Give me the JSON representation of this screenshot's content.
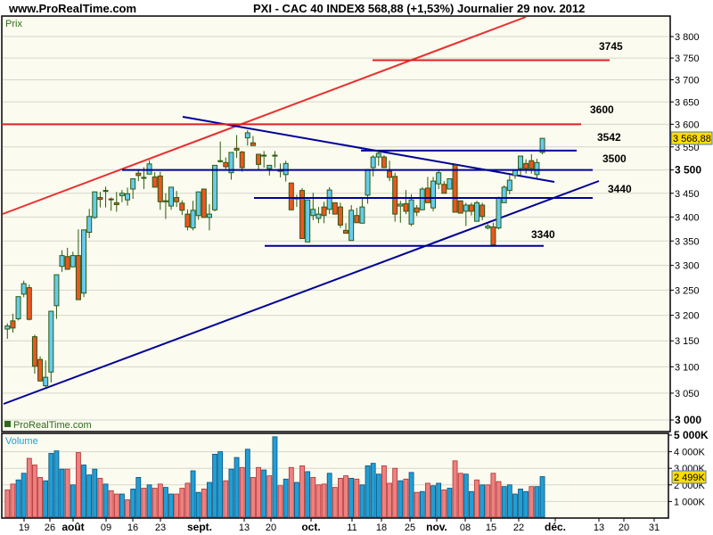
{
  "header": {
    "site": "www.ProRealTime.com",
    "instrument": "PXI - CAC 40 INDEX",
    "last_price": "3 568,88 (+1,53%)",
    "period": "Journalier",
    "date": "29 nov. 2012"
  },
  "price_panel": {
    "title": "Prix",
    "watermark": "ProRealTime.com",
    "last_price_badge": "3 568,88",
    "badge_color": "#ffdd00"
  },
  "volume_panel": {
    "title": "Volume",
    "last_volume_badge": "2 499K"
  },
  "levels": [
    {
      "label": "3745",
      "color": "#e02020"
    },
    {
      "label": "3600",
      "color": "#e02020"
    },
    {
      "label": "3542",
      "color": "#000099"
    },
    {
      "label": "3500",
      "color": "#000099"
    },
    {
      "label": "3440",
      "color": "#000099"
    },
    {
      "label": "3340",
      "color": "#000099"
    }
  ],
  "colors": {
    "up": "#66ccee",
    "down": "#ee5522",
    "wick": "#2b5a10",
    "vol_up": "#1f9fd6",
    "vol_down": "#ee8080",
    "background": "#fbfbef"
  },
  "chart_data": [
    {
      "type": "candlestick",
      "y_scale": "log",
      "ylim": [
        3000,
        3800
      ],
      "grid": true,
      "y_ticks": [
        "3 000",
        "3 050",
        "3 100",
        "3 150",
        "3 200",
        "3 250",
        "3 300",
        "3 350",
        "3 400",
        "3 450",
        "3 500",
        "3 550",
        "3 600",
        "3 650",
        "3 700",
        "3 750",
        "3 800"
      ],
      "x_ticks": [
        "19",
        "26",
        "août",
        "09",
        "16",
        "23",
        "sept.",
        "13",
        "20",
        "oct.",
        "11",
        "18",
        "25",
        "nov.",
        "08",
        "15",
        "22",
        "déc.",
        "13",
        "20",
        "31"
      ],
      "ohlc": [
        [
          3173,
          3184,
          3154,
          3179
        ],
        [
          3189,
          3203,
          3166,
          3175
        ],
        [
          3193,
          3237,
          3190,
          3237
        ],
        [
          3242,
          3269,
          3236,
          3263
        ],
        [
          3255,
          3261,
          3190,
          3192
        ],
        [
          3158,
          3162,
          3087,
          3101
        ],
        [
          3114,
          3120,
          3073,
          3073
        ],
        [
          3064,
          3112,
          3061,
          3080
        ],
        [
          3090,
          3208,
          3070,
          3208
        ],
        [
          3219,
          3281,
          3193,
          3281
        ],
        [
          3298,
          3331,
          3287,
          3320
        ],
        [
          3318,
          3336,
          3292,
          3292
        ],
        [
          3297,
          3328,
          3297,
          3320
        ],
        [
          3320,
          3374,
          3231,
          3231
        ],
        [
          3244,
          3373,
          3236,
          3373
        ],
        [
          3368,
          3417,
          3356,
          3401
        ],
        [
          3399,
          3453,
          3396,
          3453
        ],
        [
          3441,
          3453,
          3420,
          3437
        ],
        [
          3456,
          3464,
          3420,
          3454
        ],
        [
          3438,
          3441,
          3413,
          3437
        ],
        [
          3430,
          3453,
          3411,
          3426
        ],
        [
          3445,
          3457,
          3431,
          3450
        ],
        [
          3436,
          3462,
          3424,
          3449
        ],
        [
          3459,
          3481,
          3438,
          3481
        ],
        [
          3493,
          3502,
          3476,
          3488
        ],
        [
          3484,
          3506,
          3459,
          3482
        ],
        [
          3491,
          3521,
          3491,
          3513
        ],
        [
          3485,
          3495,
          3463,
          3463
        ],
        [
          3487,
          3496,
          3415,
          3432
        ],
        [
          3434,
          3450,
          3396,
          3432
        ],
        [
          3423,
          3463,
          3415,
          3463
        ],
        [
          3441,
          3455,
          3421,
          3432
        ],
        [
          3429,
          3435,
          3404,
          3414
        ],
        [
          3406,
          3416,
          3372,
          3379
        ],
        [
          3377,
          3434,
          3372,
          3414
        ],
        [
          3403,
          3453,
          3394,
          3453
        ],
        [
          3459,
          3459,
          3399,
          3399
        ],
        [
          3399,
          3427,
          3372,
          3406
        ],
        [
          3415,
          3510,
          3412,
          3510
        ],
        [
          3520,
          3562,
          3516,
          3518
        ],
        [
          3516,
          3527,
          3502,
          3507
        ],
        [
          3494,
          3538,
          3479,
          3538
        ],
        [
          3547,
          3576,
          3526,
          3543
        ],
        [
          3539,
          3541,
          3496,
          3505
        ],
        [
          3570,
          3587,
          3553,
          3581
        ],
        [
          3559,
          3574,
          3553,
          3553
        ],
        [
          3534,
          3534,
          3501,
          3512
        ],
        [
          3532,
          3541,
          3505,
          3530
        ],
        [
          3503,
          3510,
          3488,
          3510
        ],
        [
          3530,
          3541,
          3505,
          3532
        ],
        [
          3501,
          3514,
          3484,
          3497
        ],
        [
          3490,
          3520,
          3475,
          3514
        ],
        [
          3472,
          3472,
          3415,
          3415
        ],
        [
          3440,
          3447,
          3421,
          3438
        ],
        [
          3456,
          3461,
          3355,
          3355
        ],
        [
          3348,
          3436,
          3348,
          3436
        ],
        [
          3403,
          3451,
          3393,
          3416
        ],
        [
          3397,
          3421,
          3387,
          3406
        ],
        [
          3421,
          3432,
          3387,
          3403
        ],
        [
          3416,
          3463,
          3406,
          3457
        ],
        [
          3430,
          3430,
          3406,
          3406
        ],
        [
          3421,
          3430,
          3377,
          3383
        ],
        [
          3372,
          3387,
          3366,
          3366
        ],
        [
          3351,
          3425,
          3351,
          3414
        ],
        [
          3403,
          3419,
          3388,
          3388
        ],
        [
          3387,
          3440,
          3387,
          3421
        ],
        [
          3446,
          3501,
          3428,
          3501
        ],
        [
          3505,
          3532,
          3486,
          3528
        ],
        [
          3528,
          3543,
          3509,
          3536
        ],
        [
          3528,
          3532,
          3505,
          3505
        ],
        [
          3497,
          3520,
          3476,
          3484
        ],
        [
          3486,
          3494,
          3390,
          3406
        ],
        [
          3423,
          3434,
          3388,
          3427
        ],
        [
          3428,
          3457,
          3406,
          3412
        ],
        [
          3385,
          3448,
          3381,
          3436
        ],
        [
          3419,
          3425,
          3402,
          3410
        ],
        [
          3415,
          3463,
          3415,
          3459
        ],
        [
          3461,
          3485,
          3430,
          3430
        ],
        [
          3419,
          3485,
          3412,
          3476
        ],
        [
          3470,
          3501,
          3459,
          3494
        ],
        [
          3469,
          3476,
          3450,
          3450
        ],
        [
          3459,
          3481,
          3459,
          3481
        ],
        [
          3510,
          3514,
          3410,
          3410
        ],
        [
          3434,
          3434,
          3408,
          3408
        ],
        [
          3412,
          3430,
          3381,
          3425
        ],
        [
          3425,
          3430,
          3403,
          3412
        ],
        [
          3391,
          3434,
          3391,
          3430
        ],
        [
          3425,
          3430,
          3393,
          3401
        ],
        [
          3377,
          3388,
          3374,
          3381
        ],
        [
          3379,
          3388,
          3342,
          3342
        ],
        [
          3377,
          3443,
          3374,
          3440
        ],
        [
          3430,
          3467,
          3430,
          3463
        ],
        [
          3456,
          3489,
          3448,
          3478
        ],
        [
          3488,
          3499,
          3481,
          3499
        ],
        [
          3503,
          3530,
          3488,
          3530
        ],
        [
          3514,
          3523,
          3492,
          3503
        ],
        [
          3520,
          3534,
          3492,
          3503
        ],
        [
          3490,
          3524,
          3482,
          3516
        ],
        [
          3538,
          3569,
          3534,
          3568.88
        ]
      ]
    },
    {
      "type": "bar",
      "ylim": [
        0,
        5000
      ],
      "unit": "K",
      "y_ticks": [
        "1 000K",
        "2 000K",
        "3 000K",
        "4 000K",
        "5 000K"
      ],
      "values": [
        1700,
        2050,
        2300,
        2700,
        3600,
        3200,
        2450,
        2250,
        3900,
        4050,
        2950,
        2950,
        2000,
        3950,
        3200,
        2600,
        2950,
        2400,
        2050,
        1650,
        1450,
        1450,
        1100,
        1750,
        2450,
        1800,
        2000,
        1800,
        2050,
        1850,
        1450,
        1450,
        1800,
        2100,
        2850,
        1550,
        1750,
        2150,
        3850,
        4000,
        2250,
        2950,
        3650,
        3050,
        4150,
        2450,
        3050,
        2900,
        2550,
        4900,
        1950,
        2350,
        3050,
        2150,
        3150,
        2800,
        2450,
        2000,
        2050,
        2700,
        1850,
        2400,
        2550,
        2400,
        2350,
        2000,
        3150,
        3300,
        2650,
        3150,
        2100,
        3000,
        2250,
        2350,
        2750,
        1550,
        1600,
        2100,
        1950,
        2100,
        1700,
        1800,
        3450,
        2700,
        2650,
        1600,
        2300,
        2000,
        2000,
        2700,
        2200,
        1900,
        2000,
        1450,
        1750,
        1600,
        1900,
        1900,
        2499
      ],
      "directions": "rrbbrrrbbbbrbrbbbrbrrbrbbrbrrbbrrrbbrbbbrbbrbrrbrbrbrbrbrrrbrrrbrbbbbrrrbrbrbrbbrbrrbbrbrrrbbbbbrbbb"
    }
  ]
}
